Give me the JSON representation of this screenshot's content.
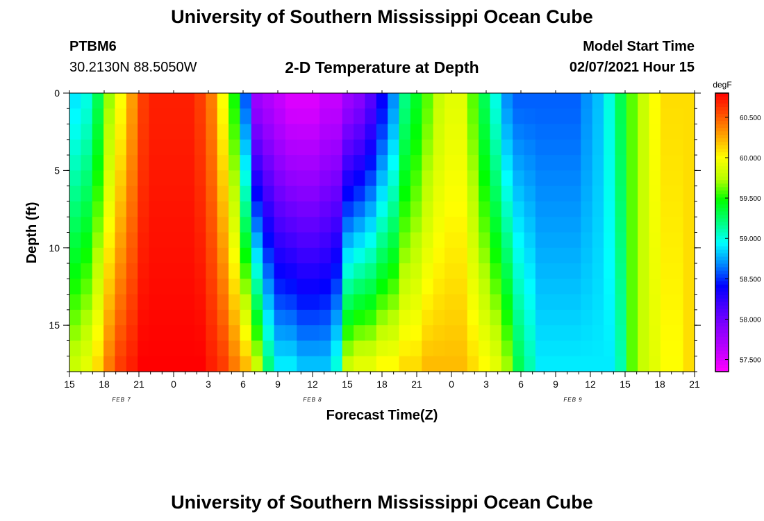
{
  "header": {
    "title": "University of Southern Mississippi Ocean Cube",
    "station_id": "PTBM6",
    "coordinates": "30.2130N 88.5050W",
    "subtitle": "2-D Temperature at Depth",
    "model_start_label": "Model Start Time",
    "model_start_value": "02/07/2021 Hour 15"
  },
  "footer": {
    "title": "University of Southern Mississippi Ocean Cube"
  },
  "chart_data": {
    "type": "heatmap",
    "xlabel": "Forecast Time(Z)",
    "ylabel": "Depth (ft)",
    "x_hours_start": "2021-02-07T15Z",
    "x_hours_end": "2021-02-09T21Z",
    "x_tick_labels": [
      "15",
      "18",
      "21",
      "0",
      "3",
      "6",
      "9",
      "12",
      "15",
      "18",
      "21",
      "0",
      "3",
      "6",
      "9",
      "12",
      "15",
      "18",
      "21"
    ],
    "date_labels": [
      {
        "text": "FEB 7",
        "tick_index": 1.5
      },
      {
        "text": "FEB 8",
        "tick_index": 7
      },
      {
        "text": "FEB 9",
        "tick_index": 14.5
      }
    ],
    "y_ticks": [
      0,
      5,
      10,
      15
    ],
    "ylim": [
      0,
      18
    ],
    "y_inverted": true,
    "colorbar": {
      "unit": "degF",
      "min": 57.35,
      "max": 60.8,
      "tick_labels": [
        "60.500",
        "60.000",
        "59.500",
        "59.000",
        "58.500",
        "58.000",
        "57.500"
      ],
      "colors": [
        "#ff00ff",
        "#c000ff",
        "#8a00ff",
        "#4a00ff",
        "#0000ff",
        "#0088ff",
        "#00ffff",
        "#00ff7a",
        "#00ff00",
        "#b8ff00",
        "#ffff00",
        "#ffa500",
        "#ff5000",
        "#ff0000"
      ]
    },
    "series_profiles": {
      "x_hours": [
        0,
        1,
        2,
        3,
        4,
        5,
        6,
        7,
        8,
        9,
        10,
        11,
        12,
        13,
        14,
        15,
        16,
        17,
        18,
        19,
        20,
        21,
        22,
        23,
        24,
        25,
        26,
        27,
        28,
        29,
        30,
        31,
        32,
        33,
        34,
        35,
        36,
        37,
        38,
        39,
        40,
        41,
        42,
        43,
        44,
        45,
        46,
        47,
        48,
        49,
        50,
        51,
        52,
        53,
        54
      ],
      "surface_degF": [
        58.9,
        59.0,
        59.3,
        59.7,
        60.0,
        60.3,
        60.6,
        60.7,
        60.7,
        60.7,
        60.7,
        60.6,
        60.4,
        60.0,
        59.5,
        58.6,
        57.8,
        57.7,
        57.6,
        57.5,
        57.5,
        57.5,
        57.6,
        57.6,
        57.8,
        57.9,
        58.1,
        58.4,
        58.7,
        59.2,
        59.4,
        59.6,
        59.8,
        59.9,
        59.9,
        59.6,
        59.3,
        59.0,
        58.7,
        58.6,
        58.6,
        58.6,
        58.6,
        58.6,
        58.6,
        58.7,
        58.8,
        59.0,
        59.3,
        59.6,
        59.8,
        60.0,
        60.1,
        60.1,
        60.1
      ],
      "bottom_degF": [
        59.8,
        59.9,
        60.1,
        60.4,
        60.6,
        60.7,
        60.8,
        60.8,
        60.8,
        60.8,
        60.8,
        60.8,
        60.7,
        60.6,
        60.4,
        60.2,
        59.8,
        59.2,
        58.9,
        58.9,
        58.8,
        58.8,
        58.8,
        59.0,
        59.8,
        59.9,
        59.9,
        60.0,
        60.0,
        60.1,
        60.1,
        60.2,
        60.2,
        60.2,
        60.2,
        60.1,
        60.0,
        59.9,
        59.7,
        59.3,
        59.1,
        58.9,
        58.9,
        58.9,
        58.9,
        58.9,
        58.9,
        58.9,
        59.1,
        59.6,
        59.8,
        59.9,
        60.0,
        60.0,
        60.1
      ]
    }
  }
}
